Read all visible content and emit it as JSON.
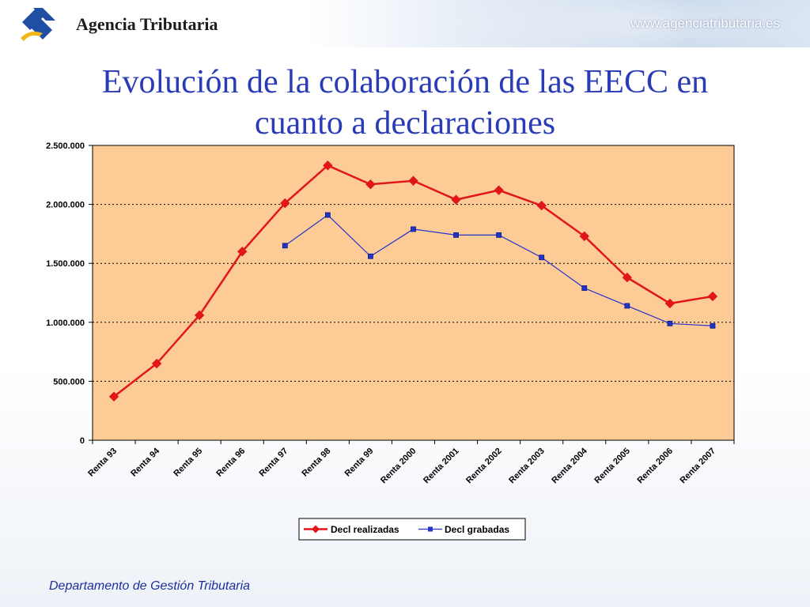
{
  "header": {
    "brand": "Agencia Tributaria",
    "site": "www.agenciatributaria.es"
  },
  "title_lines": [
    "Evolución de la colaboración de las EECC en",
    "cuanto a declaraciones"
  ],
  "footer": "Departamento de Gestión Tributaria",
  "colors": {
    "title": "#2a3bb8",
    "plot_bg": "#fdcb96",
    "series_realizadas": "#e0161b",
    "series_grabadas": "#2233cc"
  },
  "icons": {
    "logo": "agencia-tributaria-logo-icon"
  },
  "chart_data": {
    "type": "line",
    "title": "",
    "xlabel": "",
    "ylabel": "",
    "ylim": [
      0,
      2500000
    ],
    "yticks": [
      "0",
      "500.000",
      "1.000.000",
      "1.500.000",
      "2.000.000",
      "2.500.000"
    ],
    "ytick_values": [
      0,
      500000,
      1000000,
      1500000,
      2000000,
      2500000
    ],
    "categories": [
      "Renta 93",
      "Renta 94",
      "Renta 95",
      "Renta 96",
      "Renta 97",
      "Renta 98",
      "Renta 99",
      "Renta 2000",
      "Renta 2001",
      "Renta 2002",
      "Renta 2003",
      "Renta 2004",
      "Renta 2005",
      "Renta 2006",
      "Renta 2007"
    ],
    "grid": "horizontal dotted",
    "legend_position": "bottom",
    "series": [
      {
        "name": "Decl realizadas",
        "marker": "diamond",
        "values": [
          370000,
          650000,
          1060000,
          1600000,
          2010000,
          2330000,
          2170000,
          2200000,
          2040000,
          2120000,
          1990000,
          1730000,
          1380000,
          1160000,
          1220000
        ]
      },
      {
        "name": "Decl grabadas",
        "marker": "square",
        "values": [
          null,
          null,
          null,
          null,
          1650000,
          1910000,
          1560000,
          1790000,
          1740000,
          1740000,
          1550000,
          1290000,
          1140000,
          990000,
          970000
        ]
      }
    ]
  }
}
